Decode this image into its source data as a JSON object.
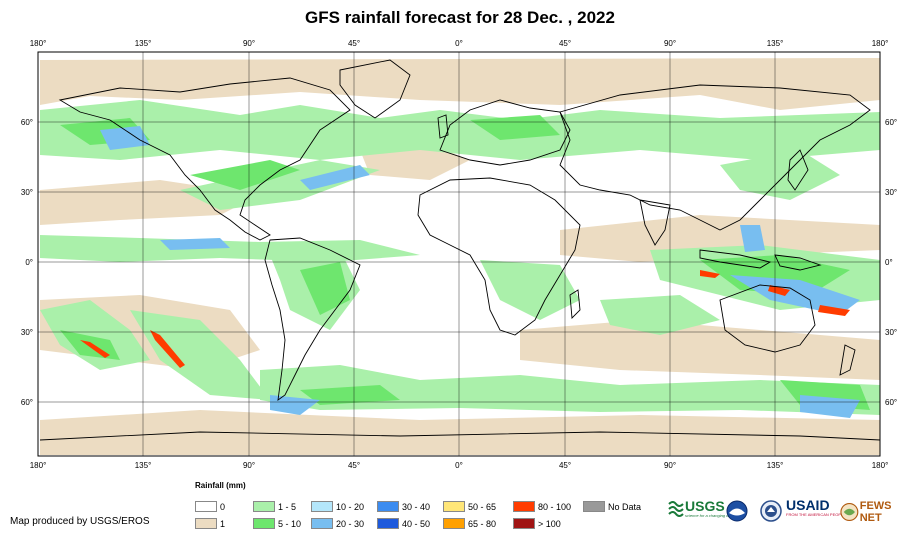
{
  "title": "GFS rainfall forecast for 28 Dec. , 2022",
  "axes": {
    "lon_labels": [
      "180°",
      "135°",
      "90°",
      "45°",
      "0°",
      "45°",
      "90°",
      "135°",
      "180°"
    ],
    "lat_labels": [
      "60°",
      "30°",
      "0°",
      "30°",
      "60°"
    ]
  },
  "legend": {
    "title": "Rainfall (mm)",
    "items": [
      {
        "label": "0",
        "color": "#ffffff"
      },
      {
        "label": "1",
        "color": "#ecdcc2"
      },
      {
        "label": "1 - 5",
        "color": "#aaf0aa"
      },
      {
        "label": "5 - 10",
        "color": "#6ee66e"
      },
      {
        "label": "10 - 20",
        "color": "#b4e6fa"
      },
      {
        "label": "20 - 30",
        "color": "#78bef0"
      },
      {
        "label": "30 - 40",
        "color": "#3c8cf0"
      },
      {
        "label": "40 - 50",
        "color": "#1e5adc"
      },
      {
        "label": "50 - 65",
        "color": "#ffe678"
      },
      {
        "label": "65 - 80",
        "color": "#ffa000"
      },
      {
        "label": "80 - 100",
        "color": "#ff3c00"
      },
      {
        "label": "> 100",
        "color": "#a01414"
      },
      {
        "label": "No Data",
        "color": "#999999"
      }
    ]
  },
  "credit": "Map produced by USGS/EROS",
  "logos": {
    "usgs": "USGS",
    "usgs_tagline": "science for a changing world",
    "usaid": "USAID",
    "usaid_tagline": "FROM THE AMERICAN PEOPLE",
    "fews": "FEWS NET",
    "noaa_icon": "noaa-icon",
    "doi_icon": "doi-seal-icon"
  }
}
